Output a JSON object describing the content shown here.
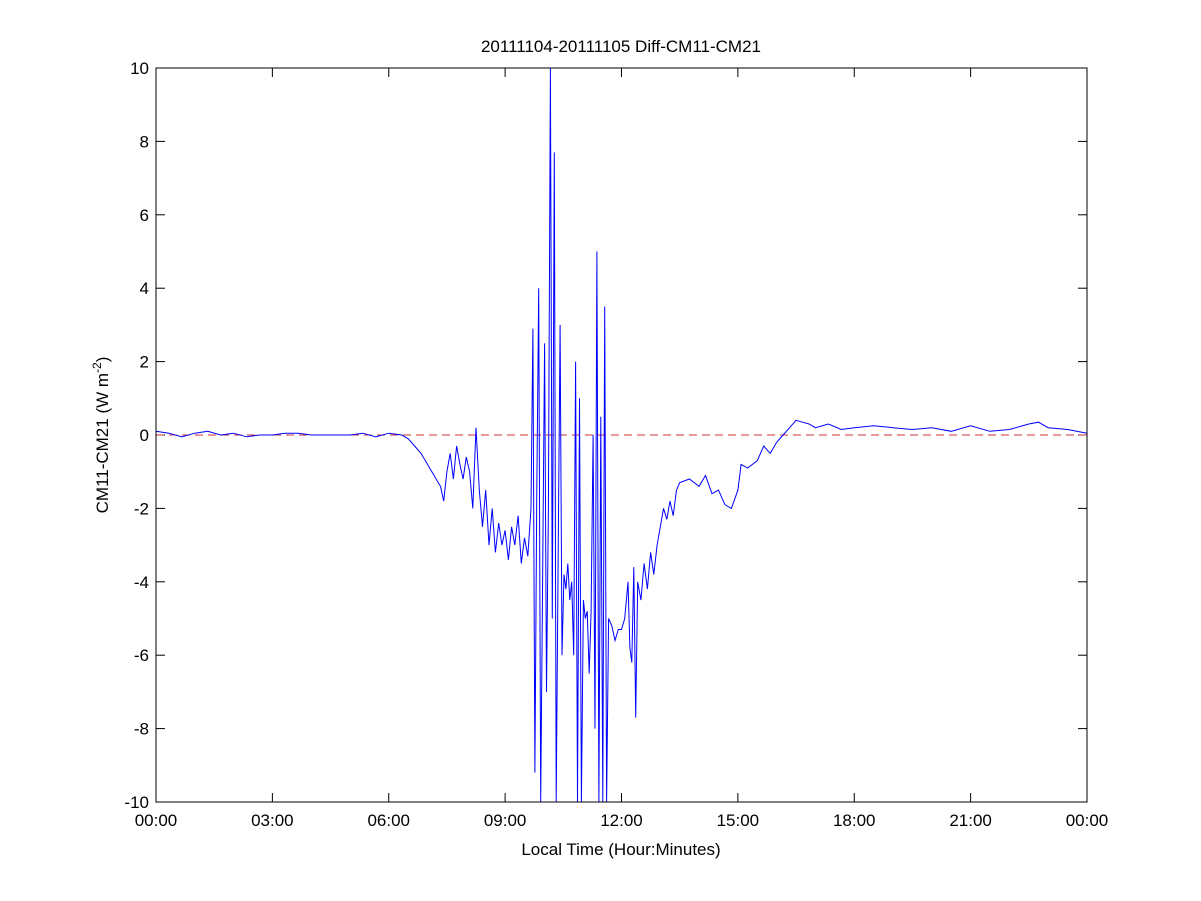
{
  "chart_data": {
    "type": "line",
    "title": "20111104-20111105 Diff-CM11-CM21",
    "xlabel": "Local Time (Hour:Minutes)",
    "ylabel_main": "CM11-CM21 (W m",
    "ylabel_sup": "-2",
    "ylabel_end": ")",
    "xlim": [
      "00:00",
      "24:00"
    ],
    "ylim": [
      -10,
      10
    ],
    "x_ticks": [
      "00:00",
      "03:00",
      "06:00",
      "09:00",
      "12:00",
      "15:00",
      "18:00",
      "21:00",
      "00:00"
    ],
    "y_ticks": [
      -10,
      -8,
      -6,
      -4,
      -2,
      0,
      2,
      4,
      6,
      8,
      10
    ],
    "grid": false,
    "reference_line": {
      "y": 0,
      "color": "#cc3333",
      "style": "dashed"
    },
    "series_color": "#0000ff",
    "points": [
      [
        "00:00",
        0.1
      ],
      [
        "00:20",
        0.05
      ],
      [
        "00:40",
        -0.05
      ],
      [
        "01:00",
        0.05
      ],
      [
        "01:20",
        0.1
      ],
      [
        "01:40",
        0.0
      ],
      [
        "02:00",
        0.05
      ],
      [
        "02:20",
        -0.05
      ],
      [
        "02:40",
        0.0
      ],
      [
        "03:00",
        0.0
      ],
      [
        "03:20",
        0.05
      ],
      [
        "03:40",
        0.05
      ],
      [
        "04:00",
        0.0
      ],
      [
        "04:30",
        0.0
      ],
      [
        "05:00",
        0.0
      ],
      [
        "05:20",
        0.05
      ],
      [
        "05:40",
        -0.05
      ],
      [
        "06:00",
        0.05
      ],
      [
        "06:20",
        0.0
      ],
      [
        "06:30",
        -0.1
      ],
      [
        "06:40",
        -0.3
      ],
      [
        "06:50",
        -0.5
      ],
      [
        "07:00",
        -0.8
      ],
      [
        "07:10",
        -1.1
      ],
      [
        "07:20",
        -1.4
      ],
      [
        "07:25",
        -1.8
      ],
      [
        "07:30",
        -1.0
      ],
      [
        "07:35",
        -0.5
      ],
      [
        "07:40",
        -1.2
      ],
      [
        "07:45",
        -0.3
      ],
      [
        "07:50",
        -0.8
      ],
      [
        "07:55",
        -1.2
      ],
      [
        "08:00",
        -0.6
      ],
      [
        "08:05",
        -1.0
      ],
      [
        "08:10",
        -2.0
      ],
      [
        "08:15",
        0.2
      ],
      [
        "08:20",
        -1.5
      ],
      [
        "08:25",
        -2.5
      ],
      [
        "08:30",
        -1.5
      ],
      [
        "08:35",
        -3.0
      ],
      [
        "08:40",
        -2.0
      ],
      [
        "08:45",
        -3.2
      ],
      [
        "08:50",
        -2.4
      ],
      [
        "08:55",
        -3.0
      ],
      [
        "09:00",
        -2.6
      ],
      [
        "09:05",
        -3.4
      ],
      [
        "09:10",
        -2.5
      ],
      [
        "09:15",
        -3.0
      ],
      [
        "09:20",
        -2.2
      ],
      [
        "09:25",
        -3.5
      ],
      [
        "09:30",
        -2.8
      ],
      [
        "09:35",
        -3.3
      ],
      [
        "09:40",
        -2.0
      ],
      [
        "09:43",
        2.9
      ],
      [
        "09:46",
        -9.2
      ],
      [
        "09:49",
        -1.5
      ],
      [
        "09:52",
        4.0
      ],
      [
        "09:55",
        -10
      ],
      [
        "09:58",
        -4.0
      ],
      [
        "10:01",
        2.5
      ],
      [
        "10:04",
        -7.0
      ],
      [
        "10:07",
        -2.0
      ],
      [
        "10:10",
        10
      ],
      [
        "10:13",
        -5
      ],
      [
        "10:16",
        7.7
      ],
      [
        "10:19",
        -10
      ],
      [
        "10:22",
        -3.5
      ],
      [
        "10:25",
        3
      ],
      [
        "10:28",
        -6
      ],
      [
        "10:31",
        -3.8
      ],
      [
        "10:34",
        -4.2
      ],
      [
        "10:37",
        -3.5
      ],
      [
        "10:40",
        -4.5
      ],
      [
        "10:43",
        -4.0
      ],
      [
        "10:46",
        -6.0
      ],
      [
        "10:49",
        2.0
      ],
      [
        "10:52",
        -10
      ],
      [
        "10:55",
        1.0
      ],
      [
        "10:58",
        -10
      ],
      [
        "11:01",
        -4.5
      ],
      [
        "11:04",
        -5.0
      ],
      [
        "11:07",
        -4.8
      ],
      [
        "11:10",
        -6.5
      ],
      [
        "11:13",
        -4.8
      ],
      [
        "11:16",
        0.0
      ],
      [
        "11:19",
        -8.0
      ],
      [
        "11:22",
        5.0
      ],
      [
        "11:25",
        -10
      ],
      [
        "11:28",
        0.5
      ],
      [
        "11:31",
        -10
      ],
      [
        "11:34",
        3.5
      ],
      [
        "11:37",
        -10
      ],
      [
        "11:40",
        -5.0
      ],
      [
        "11:45",
        -5.2
      ],
      [
        "11:50",
        -5.6
      ],
      [
        "11:55",
        -5.3
      ],
      [
        "12:00",
        -5.3
      ],
      [
        "12:05",
        -5.0
      ],
      [
        "12:10",
        -4.0
      ],
      [
        "12:13",
        -5.8
      ],
      [
        "12:16",
        -6.2
      ],
      [
        "12:19",
        -3.6
      ],
      [
        "12:22",
        -7.7
      ],
      [
        "12:25",
        -4.0
      ],
      [
        "12:30",
        -4.5
      ],
      [
        "12:35",
        -3.5
      ],
      [
        "12:40",
        -4.2
      ],
      [
        "12:45",
        -3.2
      ],
      [
        "12:50",
        -3.8
      ],
      [
        "12:55",
        -3.0
      ],
      [
        "13:00",
        -2.5
      ],
      [
        "13:05",
        -2.0
      ],
      [
        "13:10",
        -2.3
      ],
      [
        "13:15",
        -1.8
      ],
      [
        "13:20",
        -2.2
      ],
      [
        "13:25",
        -1.5
      ],
      [
        "13:30",
        -1.3
      ],
      [
        "13:45",
        -1.2
      ],
      [
        "14:00",
        -1.4
      ],
      [
        "14:10",
        -1.1
      ],
      [
        "14:20",
        -1.6
      ],
      [
        "14:30",
        -1.5
      ],
      [
        "14:40",
        -1.9
      ],
      [
        "14:50",
        -2.0
      ],
      [
        "15:00",
        -1.5
      ],
      [
        "15:05",
        -0.8
      ],
      [
        "15:15",
        -0.9
      ],
      [
        "15:30",
        -0.7
      ],
      [
        "15:40",
        -0.3
      ],
      [
        "15:50",
        -0.5
      ],
      [
        "16:00",
        -0.2
      ],
      [
        "16:10",
        0.0
      ],
      [
        "16:20",
        0.2
      ],
      [
        "16:30",
        0.4
      ],
      [
        "16:40",
        0.35
      ],
      [
        "16:50",
        0.3
      ],
      [
        "17:00",
        0.2
      ],
      [
        "17:20",
        0.3
      ],
      [
        "17:40",
        0.15
      ],
      [
        "18:00",
        0.2
      ],
      [
        "18:30",
        0.25
      ],
      [
        "19:00",
        0.2
      ],
      [
        "19:30",
        0.15
      ],
      [
        "20:00",
        0.2
      ],
      [
        "20:30",
        0.1
      ],
      [
        "21:00",
        0.25
      ],
      [
        "21:30",
        0.1
      ],
      [
        "22:00",
        0.15
      ],
      [
        "22:30",
        0.3
      ],
      [
        "22:45",
        0.35
      ],
      [
        "23:00",
        0.2
      ],
      [
        "23:30",
        0.15
      ],
      [
        "24:00",
        0.05
      ]
    ]
  }
}
